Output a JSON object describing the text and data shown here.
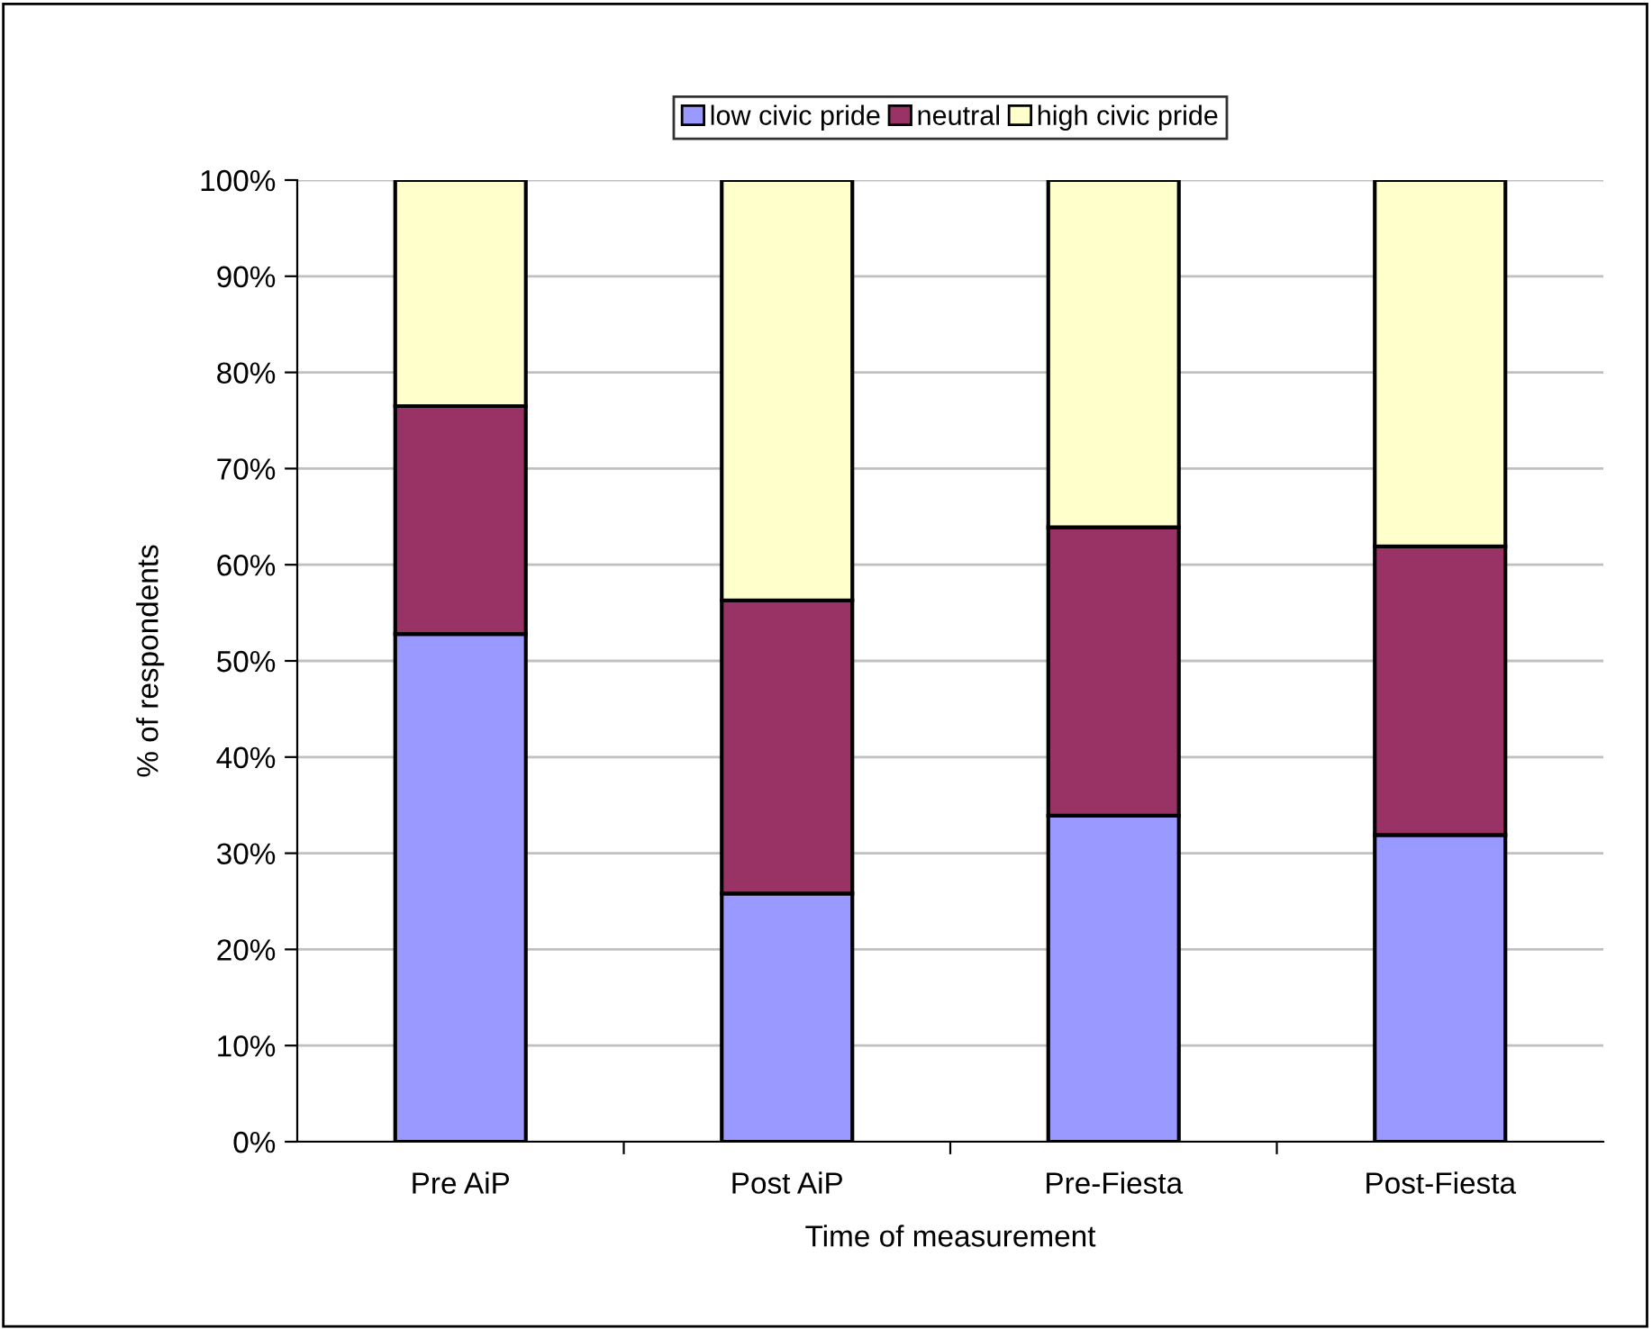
{
  "chart_data": {
    "type": "bar",
    "stacked": true,
    "xlabel": "Time of measurement",
    "ylabel": "% of respondents",
    "categories": [
      "Pre AiP",
      "Post AiP",
      "Pre-Fiesta",
      "Post-Fiesta"
    ],
    "series": [
      {
        "name": "low civic pride",
        "color": "#9999ff",
        "values": [
          52.8,
          25.8,
          33.9,
          31.9
        ]
      },
      {
        "name": "neutral",
        "color": "#993366",
        "values": [
          23.7,
          30.5,
          30.0,
          30.0
        ]
      },
      {
        "name": "high civic pride",
        "color": "#ffffcc",
        "values": [
          23.5,
          43.7,
          36.1,
          38.1
        ]
      }
    ],
    "ylim": [
      0,
      100
    ],
    "yticks": [
      {
        "value": 0,
        "label": "0%"
      },
      {
        "value": 10,
        "label": "10%"
      },
      {
        "value": 20,
        "label": "20%"
      },
      {
        "value": 30,
        "label": "30%"
      },
      {
        "value": 40,
        "label": "40%"
      },
      {
        "value": 50,
        "label": "50%"
      },
      {
        "value": 60,
        "label": "60%"
      },
      {
        "value": 70,
        "label": "70%"
      },
      {
        "value": 80,
        "label": "80%"
      },
      {
        "value": 90,
        "label": "90%"
      },
      {
        "value": 100,
        "label": "100%"
      }
    ],
    "grid": "y",
    "legend": "top"
  }
}
